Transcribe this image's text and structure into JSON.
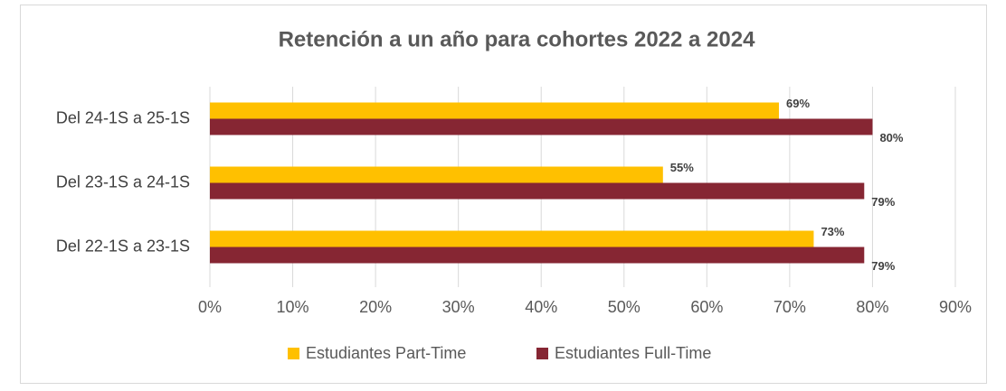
{
  "chart_data": {
    "type": "bar",
    "orientation": "horizontal",
    "title": "Retención a un año para cohortes 2022 a 2024",
    "categories": [
      "Del 24-1S a 25-1S",
      "Del 23-1S a 24-1S",
      "Del 22-1S a 23-1S"
    ],
    "series": [
      {
        "name": "Estudiantes Part-Time",
        "color": "#FFC000",
        "values": [
          68.7,
          54.7,
          72.9
        ],
        "value_labels": [
          "69%",
          "55%",
          "73%"
        ]
      },
      {
        "name": "Estudiantes Full-Time",
        "color": "#862633",
        "values": [
          80.0,
          79.0,
          79.0
        ],
        "value_labels": [
          "80%",
          "79%",
          "79%"
        ]
      }
    ],
    "xlim": [
      0,
      90
    ],
    "xticks": [
      {
        "value": 0,
        "label": "0%"
      },
      {
        "value": 10,
        "label": "10%"
      },
      {
        "value": 20,
        "label": "20%"
      },
      {
        "value": 30,
        "label": "30%"
      },
      {
        "value": 40,
        "label": "40%"
      },
      {
        "value": 50,
        "label": "50%"
      },
      {
        "value": 60,
        "label": "60%"
      },
      {
        "value": 70,
        "label": "70%"
      },
      {
        "value": 80,
        "label": "80%"
      },
      {
        "value": 90,
        "label": "90%"
      }
    ],
    "grid": true,
    "legend": "bottom"
  }
}
